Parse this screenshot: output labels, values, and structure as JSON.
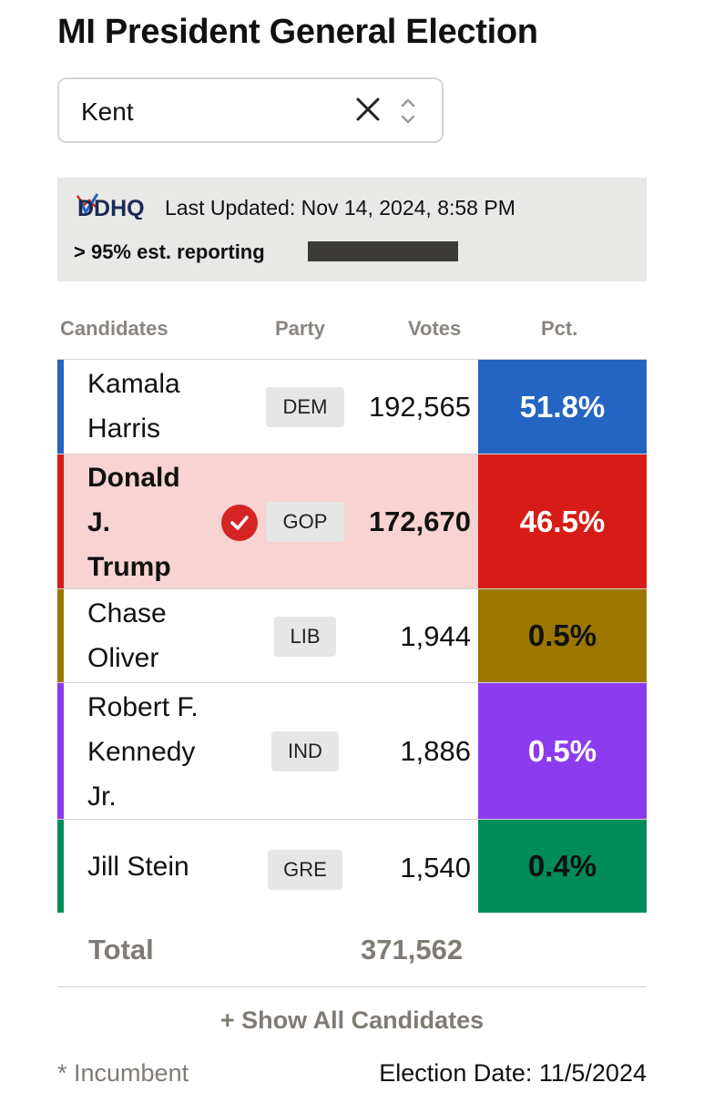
{
  "title": "MI President General Election",
  "county_select": {
    "value": "Kent"
  },
  "info": {
    "logo_text": "DDHQ",
    "last_updated": "Last Updated: Nov 14, 2024, 8:58 PM",
    "reporting": "> 95% est. reporting"
  },
  "columns": {
    "candidates": "Candidates",
    "party": "Party",
    "votes": "Votes",
    "pct": "Pct."
  },
  "candidates": [
    {
      "name_lines": [
        "Kamala",
        "Harris"
      ],
      "party": "DEM",
      "votes": "192,565",
      "pct": "51.8%",
      "color": "#2465c3",
      "winner": false
    },
    {
      "name_lines": [
        "Donald",
        "J.",
        "Trump"
      ],
      "party": "GOP",
      "votes": "172,670",
      "pct": "46.5%",
      "color": "#d71c17",
      "winner": true,
      "row_bg": "#f7d3d2"
    },
    {
      "name_lines": [
        "Chase",
        "Oliver"
      ],
      "party": "LIB",
      "votes": "1,944",
      "pct": "0.5%",
      "color": "#9b7700",
      "winner": false
    },
    {
      "name_lines": [
        "Robert F.",
        "Kennedy",
        "Jr."
      ],
      "party": "IND",
      "votes": "1,886",
      "pct": "0.5%",
      "color": "#8d3bef",
      "winner": false
    },
    {
      "name_lines": [
        "Jill Stein"
      ],
      "party": "GRE",
      "votes": "1,540",
      "pct": "0.4%",
      "color": "#008c59",
      "winner": false
    }
  ],
  "total": {
    "label": "Total",
    "votes": "371,562"
  },
  "show_all": "+ Show All Candidates",
  "footer": {
    "incumbent": "* Incumbent",
    "election_date": "Election Date: 11/5/2024"
  },
  "icons": {
    "clear": "close-icon",
    "updown": "chevron-updown-icon",
    "winner": "check-circle-icon"
  }
}
